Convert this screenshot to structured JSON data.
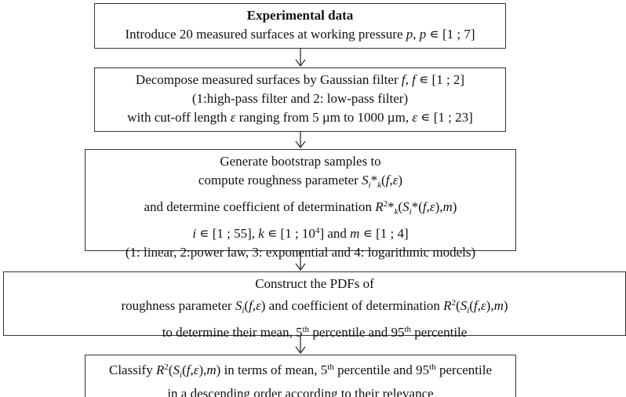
{
  "boxes": [
    {
      "lines": [
        [
          {
            "text": "Experimental data",
            "style": "b"
          }
        ],
        [
          "Introduce 20 measured surfaces at working pressure ",
          {
            "text": "p",
            "style": "i"
          },
          ", ",
          {
            "text": "p",
            "style": "i"
          },
          " ∊ [1 ; 7]"
        ]
      ]
    },
    {
      "lines": [
        [
          "Decompose measured surfaces by Gaussian filter ",
          {
            "text": "f",
            "style": "i"
          },
          ", ",
          {
            "text": "f",
            "style": "i"
          },
          " ∊ [1 ; 2]"
        ],
        [
          "(1:high-pass filter and 2: low-pass filter)"
        ],
        [
          "with cut-off length ",
          {
            "text": "ε",
            "style": "i"
          },
          " ranging from 5 µm to 1000 µm, ",
          {
            "text": "ε",
            "style": "i"
          },
          " ∊ [1 ; 23]"
        ]
      ]
    },
    {
      "lines": [
        [
          "Generate bootstrap samples to"
        ],
        [
          "compute roughness parameter ",
          {
            "text": "S",
            "style": "i"
          },
          {
            "text": "i",
            "style": "sub"
          },
          "*",
          {
            "text": "k",
            "style": "sub"
          },
          "(",
          {
            "text": "f",
            "style": "i"
          },
          ",",
          {
            "text": "ε",
            "style": "i"
          },
          ")"
        ],
        [
          "and determine coefficient of determination ",
          {
            "text": "R",
            "style": "i"
          },
          {
            "text": "2",
            "style": "sup"
          },
          "*",
          {
            "text": "k",
            "style": "sub"
          },
          "(",
          {
            "text": "S",
            "style": "i"
          },
          {
            "text": "i",
            "style": "sub"
          },
          "*(",
          {
            "text": "f",
            "style": "i"
          },
          ",",
          {
            "text": "ε",
            "style": "i"
          },
          "),",
          {
            "text": "m",
            "style": "i"
          },
          ")"
        ],
        [
          {
            "text": "i",
            "style": "i"
          },
          " ∊ [1 ; 55], ",
          {
            "text": "k",
            "style": "i"
          },
          " ∊ [1 ; 10",
          {
            "text": "4",
            "style": "sup"
          },
          "] and ",
          {
            "text": "m",
            "style": "i"
          },
          " ∊ [1 ; 4]"
        ],
        [
          "(1: linear, 2:power law, 3: exponential and 4: logarithmic models)"
        ]
      ]
    },
    {
      "lines": [
        [
          "Construct the PDFs of"
        ],
        [
          "roughness parameter ",
          {
            "text": "S",
            "style": "i"
          },
          {
            "text": "i",
            "style": "sub"
          },
          "(",
          {
            "text": "f",
            "style": "i"
          },
          ",",
          {
            "text": "ε",
            "style": "i"
          },
          ") and coefficient of determination ",
          {
            "text": "R",
            "style": "i"
          },
          {
            "text": "2",
            "style": "sup"
          },
          "(",
          {
            "text": "S",
            "style": "i"
          },
          {
            "text": "i",
            "style": "sub"
          },
          "(",
          {
            "text": "f",
            "style": "i"
          },
          ",",
          {
            "text": "ε",
            "style": "i"
          },
          "),",
          {
            "text": "m",
            "style": "i"
          },
          ")"
        ],
        [
          "to determine their mean, 5",
          {
            "text": "th",
            "style": "sup"
          },
          " percentile and 95",
          {
            "text": "th",
            "style": "sup"
          },
          " percentile"
        ]
      ]
    },
    {
      "lines": [
        [
          "Classify ",
          {
            "text": "R",
            "style": "i"
          },
          {
            "text": "2",
            "style": "sup"
          },
          "(",
          {
            "text": "S",
            "style": "i"
          },
          {
            "text": "i",
            "style": "sub"
          },
          "(",
          {
            "text": "f",
            "style": "i"
          },
          ",",
          {
            "text": "ε",
            "style": "i"
          },
          "),",
          {
            "text": "m",
            "style": "i"
          },
          ") in terms of mean, 5",
          {
            "text": "th",
            "style": "sup"
          },
          " percentile and 95",
          {
            "text": "th",
            "style": "sup"
          },
          " percentile"
        ],
        [
          "in a descending order according to their relevance"
        ]
      ]
    }
  ]
}
